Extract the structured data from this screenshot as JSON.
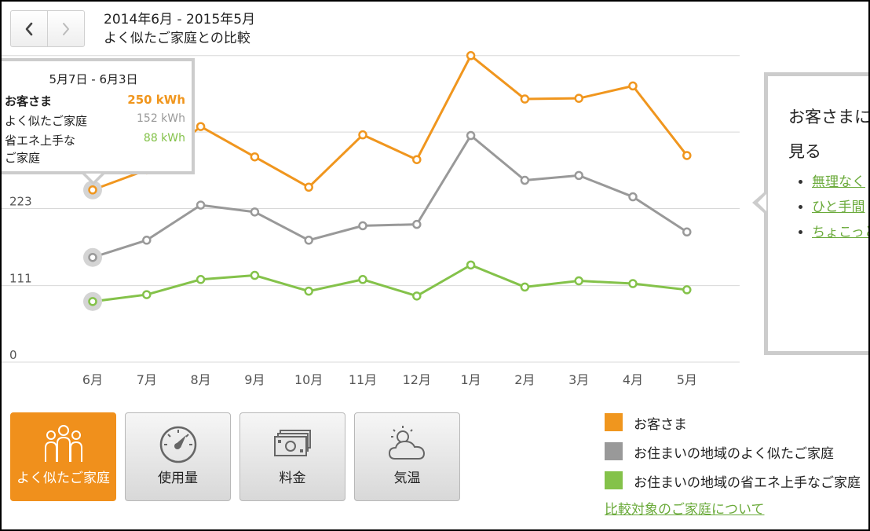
{
  "header": {
    "period": "2014年6月 - 2015年5月",
    "subtitle": "よく似たご家庭との比較"
  },
  "nav": {
    "prev_icon": "chevron-left-icon",
    "next_icon": "chevron-right-icon"
  },
  "chart_data": {
    "type": "line",
    "categories": [
      "6月",
      "7月",
      "8月",
      "9月",
      "10月",
      "11月",
      "12月",
      "1月",
      "2月",
      "3月",
      "4月",
      "5月"
    ],
    "y_ticks": [
      0,
      111,
      223
    ],
    "ylim": [
      0,
      406
    ],
    "grid": true,
    "series": [
      {
        "name": "お客さま",
        "color": "#f0961e",
        "values": [
          250,
          279,
          342,
          298,
          254,
          330,
          294,
          445,
          382,
          383,
          401,
          300
        ]
      },
      {
        "name": "お住まいの地域のよく似たご家庭",
        "color": "#999999",
        "values": [
          152,
          177,
          228,
          218,
          177,
          198,
          200,
          329,
          264,
          271,
          240,
          189
        ]
      },
      {
        "name": "お住まいの地域の省エネ上手なご家庭",
        "color": "#84c24a",
        "values": [
          88,
          98,
          120,
          126,
          103,
          120,
          96,
          141,
          109,
          118,
          114,
          105
        ]
      }
    ]
  },
  "tooltip": {
    "date": "5月7日 - 6月3日",
    "rows": [
      {
        "label": "お客さま",
        "value": "250 kWh",
        "color": "#f0961e"
      },
      {
        "label": "よく似たご家庭",
        "value": "152 kWh",
        "color": "#999999"
      },
      {
        "label": "省エネ上手な",
        "label2": "ご家庭",
        "value": "88 kWh",
        "color": "#84c24a"
      }
    ]
  },
  "panel": {
    "heading1": "お客さまに",
    "heading2": "見る",
    "links": [
      "無理なく",
      "ひと手間",
      "ちょこっと"
    ]
  },
  "tabs": [
    {
      "label": "よく似たご家庭",
      "icon": "family-icon",
      "active": true
    },
    {
      "label": "使用量",
      "icon": "gauge-icon",
      "active": false
    },
    {
      "label": "料金",
      "icon": "money-icon",
      "active": false
    },
    {
      "label": "気温",
      "icon": "weather-icon",
      "active": false
    }
  ],
  "legend": [
    {
      "label": "お客さま",
      "color": "#f0961e"
    },
    {
      "label": "お住まいの地域のよく似たご家庭",
      "color": "#999999"
    },
    {
      "label": "お住まいの地域の省エネ上手なご家庭",
      "color": "#84c24a"
    }
  ],
  "about_link": "比較対象のご家庭について"
}
